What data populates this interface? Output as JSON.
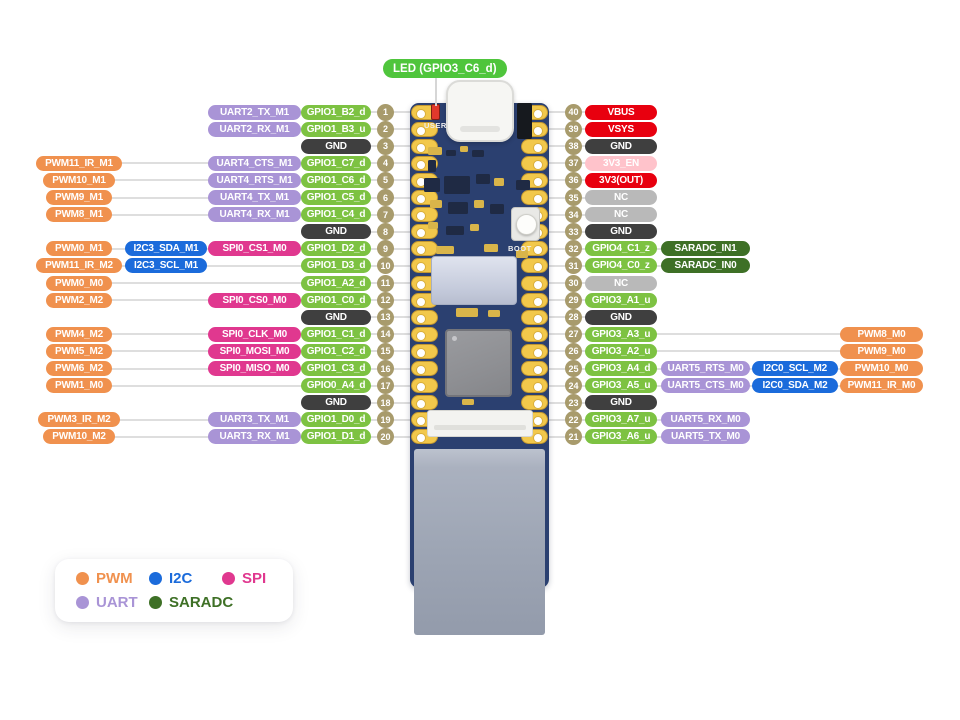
{
  "led_label": "LED (GPIO3_C6_d)",
  "board": {
    "user_text": "USER",
    "boot_text": "BOOT"
  },
  "colors": {
    "pwm": "#F0914E",
    "i2c": "#1B6BDB",
    "spi": "#E0388F",
    "uart": "#A994D6",
    "saradc": "#3E7026",
    "gpio": "#7DC242",
    "gnd": "#3F3F3F",
    "nc": "#B9B9B9",
    "pwr": "#E8000F",
    "pwren": "#FFC3CB",
    "pin": "#A89B6C",
    "led_badge": "#4FC53C"
  },
  "legend": {
    "items": [
      {
        "label": "PWM",
        "type": "pwm"
      },
      {
        "label": "I2C",
        "type": "i2c"
      },
      {
        "label": "SPI",
        "type": "spi"
      },
      {
        "label": "UART",
        "type": "uart"
      },
      {
        "label": "SARADC",
        "type": "saradc"
      }
    ]
  },
  "left_pins": [
    {
      "num": 1,
      "badges": [
        {
          "text": "UART2_TX_M1",
          "type": "uart"
        },
        {
          "text": "GPIO1_B2_d",
          "type": "gpio"
        }
      ]
    },
    {
      "num": 2,
      "badges": [
        {
          "text": "UART2_RX_M1",
          "type": "uart"
        },
        {
          "text": "GPIO1_B3_u",
          "type": "gpio"
        }
      ]
    },
    {
      "num": 3,
      "badges": [
        {
          "text": "GND",
          "type": "gnd"
        }
      ]
    },
    {
      "num": 4,
      "badges": [
        {
          "text": "PWM11_IR_M1",
          "type": "pwm"
        },
        {
          "text": "UART4_CTS_M1",
          "type": "uart"
        },
        {
          "text": "GPIO1_C7_d",
          "type": "gpio"
        }
      ]
    },
    {
      "num": 5,
      "badges": [
        {
          "text": "PWM10_M1",
          "type": "pwm"
        },
        {
          "text": "UART4_RTS_M1",
          "type": "uart"
        },
        {
          "text": "GPIO1_C6_d",
          "type": "gpio"
        }
      ]
    },
    {
      "num": 6,
      "badges": [
        {
          "text": "PWM9_M1",
          "type": "pwm"
        },
        {
          "text": "UART4_TX_M1",
          "type": "uart"
        },
        {
          "text": "GPIO1_C5_d",
          "type": "gpio"
        }
      ]
    },
    {
      "num": 7,
      "badges": [
        {
          "text": "PWM8_M1",
          "type": "pwm"
        },
        {
          "text": "UART4_RX_M1",
          "type": "uart"
        },
        {
          "text": "GPIO1_C4_d",
          "type": "gpio"
        }
      ]
    },
    {
      "num": 8,
      "badges": [
        {
          "text": "GND",
          "type": "gnd"
        }
      ]
    },
    {
      "num": 9,
      "badges": [
        {
          "text": "PWM0_M1",
          "type": "pwm"
        },
        {
          "text": "I2C3_SDA_M1",
          "type": "i2c"
        },
        {
          "text": "SPI0_CS1_M0",
          "type": "spi"
        },
        {
          "text": "GPIO1_D2_d",
          "type": "gpio"
        }
      ]
    },
    {
      "num": 10,
      "badges": [
        {
          "text": "PWM11_IR_M2",
          "type": "pwm"
        },
        {
          "text": "I2C3_SCL_M1",
          "type": "i2c"
        },
        {
          "text": "GPIO1_D3_d",
          "type": "gpio"
        }
      ]
    },
    {
      "num": 11,
      "badges": [
        {
          "text": "PWM0_M0",
          "type": "pwm"
        },
        {
          "text": "GPIO1_A2_d",
          "type": "gpio"
        }
      ]
    },
    {
      "num": 12,
      "badges": [
        {
          "text": "PWM2_M2",
          "type": "pwm"
        },
        {
          "text": "SPI0_CS0_M0",
          "type": "spi"
        },
        {
          "text": "GPIO1_C0_d",
          "type": "gpio"
        }
      ]
    },
    {
      "num": 13,
      "badges": [
        {
          "text": "GND",
          "type": "gnd"
        }
      ]
    },
    {
      "num": 14,
      "badges": [
        {
          "text": "PWM4_M2",
          "type": "pwm"
        },
        {
          "text": "SPI0_CLK_M0",
          "type": "spi"
        },
        {
          "text": "GPIO1_C1_d",
          "type": "gpio"
        }
      ]
    },
    {
      "num": 15,
      "badges": [
        {
          "text": "PWM5_M2",
          "type": "pwm"
        },
        {
          "text": "SPI0_MOSI_M0",
          "type": "spi"
        },
        {
          "text": "GPIO1_C2_d",
          "type": "gpio"
        }
      ]
    },
    {
      "num": 16,
      "badges": [
        {
          "text": "PWM6_M2",
          "type": "pwm"
        },
        {
          "text": "SPI0_MISO_M0",
          "type": "spi"
        },
        {
          "text": "GPIO1_C3_d",
          "type": "gpio"
        }
      ]
    },
    {
      "num": 17,
      "badges": [
        {
          "text": "PWM1_M0",
          "type": "pwm"
        },
        {
          "text": "GPIO0_A4_d",
          "type": "gpio"
        }
      ]
    },
    {
      "num": 18,
      "badges": [
        {
          "text": "GND",
          "type": "gnd"
        }
      ]
    },
    {
      "num": 19,
      "badges": [
        {
          "text": "PWM3_IR_M2",
          "type": "pwm"
        },
        {
          "text": "UART3_TX_M1",
          "type": "uart"
        },
        {
          "text": "GPIO1_D0_d",
          "type": "gpio"
        }
      ]
    },
    {
      "num": 20,
      "badges": [
        {
          "text": "PWM10_M2",
          "type": "pwm"
        },
        {
          "text": "UART3_RX_M1",
          "type": "uart"
        },
        {
          "text": "GPIO1_D1_d",
          "type": "gpio"
        }
      ]
    }
  ],
  "right_pins": [
    {
      "num": 40,
      "badges": [
        {
          "text": "VBUS",
          "type": "pwr"
        }
      ]
    },
    {
      "num": 39,
      "badges": [
        {
          "text": "VSYS",
          "type": "pwr"
        }
      ]
    },
    {
      "num": 38,
      "badges": [
        {
          "text": "GND",
          "type": "gnd"
        }
      ]
    },
    {
      "num": 37,
      "badges": [
        {
          "text": "3V3_EN",
          "type": "pwren"
        }
      ]
    },
    {
      "num": 36,
      "badges": [
        {
          "text": "3V3(OUT)",
          "type": "pwr"
        }
      ]
    },
    {
      "num": 35,
      "badges": [
        {
          "text": "NC",
          "type": "nc"
        }
      ]
    },
    {
      "num": 34,
      "badges": [
        {
          "text": "NC",
          "type": "nc"
        }
      ]
    },
    {
      "num": 33,
      "badges": [
        {
          "text": "GND",
          "type": "gnd"
        }
      ]
    },
    {
      "num": 32,
      "badges": [
        {
          "text": "GPIO4_C1_z",
          "type": "gpio"
        },
        {
          "text": "SARADC_IN1",
          "type": "saradc"
        }
      ]
    },
    {
      "num": 31,
      "badges": [
        {
          "text": "GPIO4_C0_z",
          "type": "gpio"
        },
        {
          "text": "SARADC_IN0",
          "type": "saradc"
        }
      ]
    },
    {
      "num": 30,
      "badges": [
        {
          "text": "NC",
          "type": "nc"
        }
      ]
    },
    {
      "num": 29,
      "badges": [
        {
          "text": "GPIO3_A1_u",
          "type": "gpio"
        }
      ]
    },
    {
      "num": 28,
      "badges": [
        {
          "text": "GND",
          "type": "gnd"
        }
      ]
    },
    {
      "num": 27,
      "badges": [
        {
          "text": "GPIO3_A3_u",
          "type": "gpio"
        },
        {
          "text": "PWM8_M0",
          "type": "pwm"
        }
      ]
    },
    {
      "num": 26,
      "badges": [
        {
          "text": "GPIO3_A2_u",
          "type": "gpio"
        },
        {
          "text": "PWM9_M0",
          "type": "pwm"
        }
      ]
    },
    {
      "num": 25,
      "badges": [
        {
          "text": "GPIO3_A4_d",
          "type": "gpio"
        },
        {
          "text": "UART5_RTS_M0",
          "type": "uart"
        },
        {
          "text": "I2C0_SCL_M2",
          "type": "i2c"
        },
        {
          "text": "PWM10_M0",
          "type": "pwm"
        }
      ]
    },
    {
      "num": 24,
      "badges": [
        {
          "text": "GPIO3_A5_u",
          "type": "gpio"
        },
        {
          "text": "UART5_CTS_M0",
          "type": "uart"
        },
        {
          "text": "I2C0_SDA_M2",
          "type": "i2c"
        },
        {
          "text": "PWM11_IR_M0",
          "type": "pwm"
        }
      ]
    },
    {
      "num": 23,
      "badges": [
        {
          "text": "GND",
          "type": "gnd"
        }
      ]
    },
    {
      "num": 22,
      "badges": [
        {
          "text": "GPIO3_A7_u",
          "type": "gpio"
        },
        {
          "text": "UART5_RX_M0",
          "type": "uart"
        }
      ]
    },
    {
      "num": 21,
      "badges": [
        {
          "text": "GPIO3_A6_u",
          "type": "gpio"
        },
        {
          "text": "UART5_TX_M0",
          "type": "uart"
        }
      ]
    }
  ]
}
